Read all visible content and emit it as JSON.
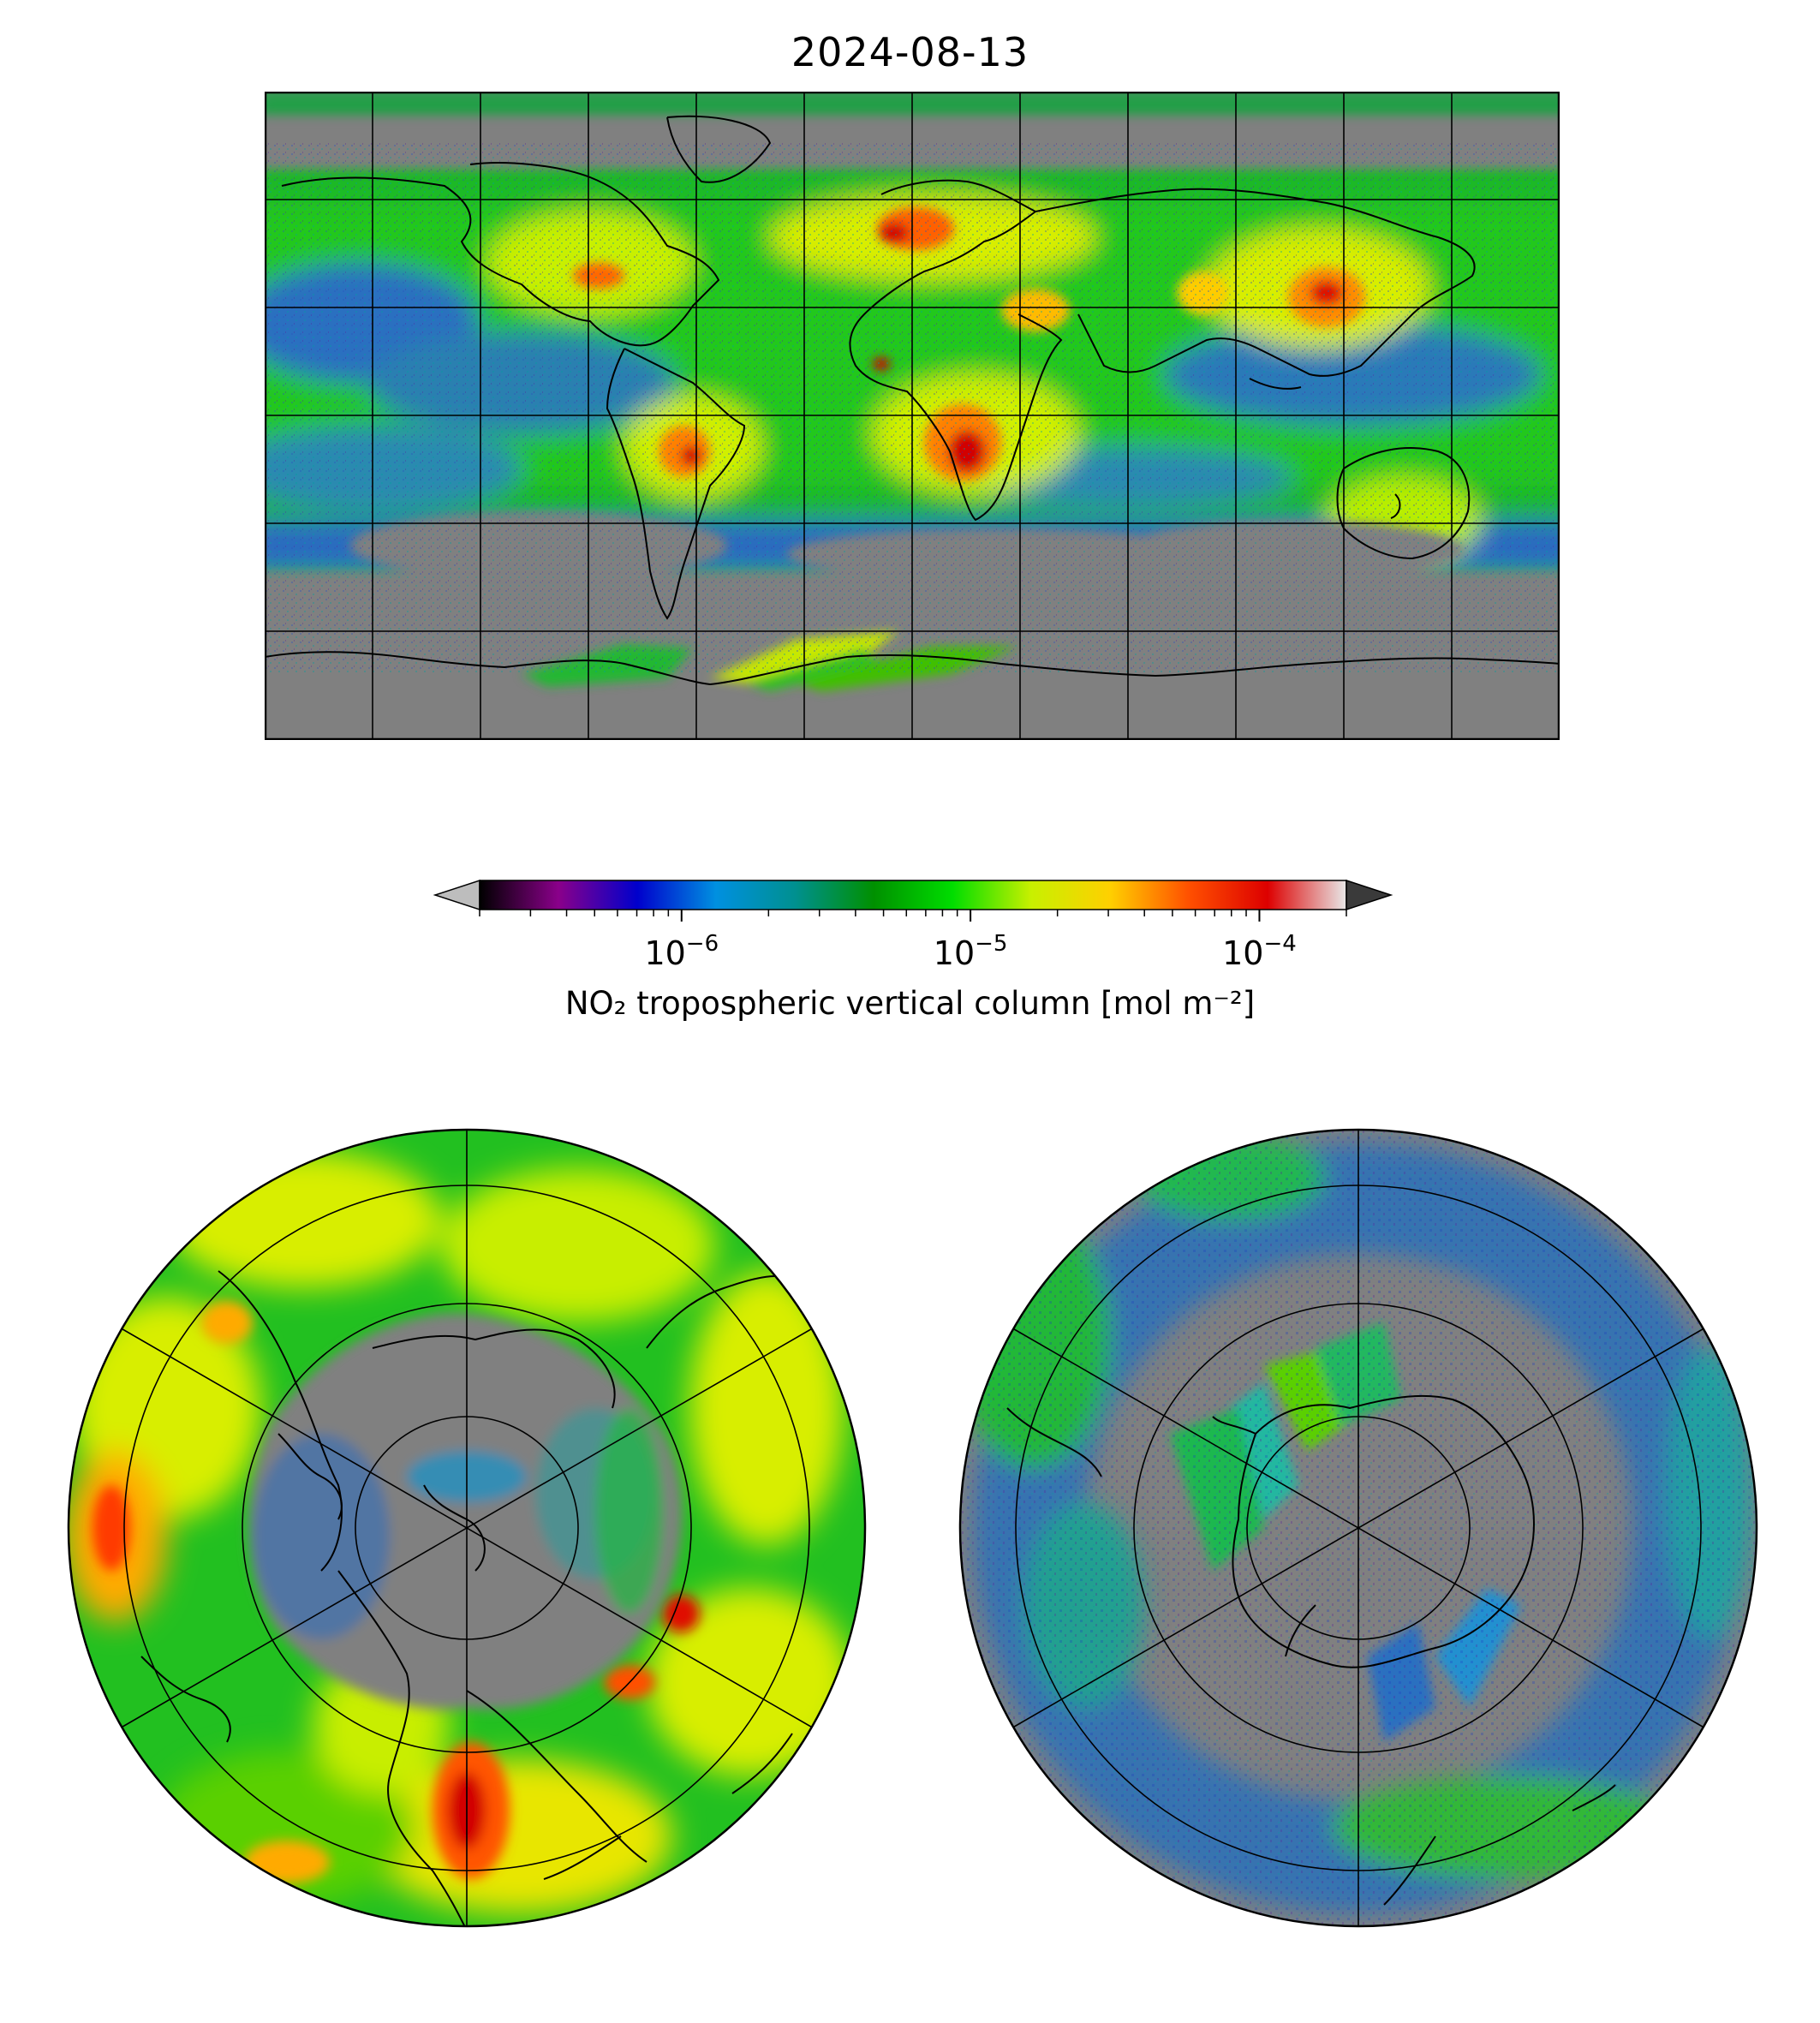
{
  "figure": {
    "title": "2024-08-13"
  },
  "colorbar": {
    "label": "NO₂ tropospheric vertical column [mol m⁻²]",
    "scale": "log",
    "range": [
      2e-07,
      0.0002
    ],
    "extend": "both",
    "major_ticks": [
      {
        "value": 1e-06,
        "base": "10",
        "exp": "−6"
      },
      {
        "value": 1e-05,
        "base": "10",
        "exp": "−5"
      },
      {
        "value": 0.0001,
        "base": "10",
        "exp": "−4"
      }
    ],
    "colors": [
      "#000000",
      "#8a008a",
      "#0000cc",
      "#0090e0",
      "#009090",
      "#009000",
      "#00dd00",
      "#c8f000",
      "#ffd000",
      "#ff5000",
      "#dd0000",
      "#e8e8e8"
    ],
    "under_color": "#bdbdbd",
    "over_color": "#3a3a3a"
  },
  "panels": [
    {
      "name": "global-map",
      "projection": "plate-carree",
      "gridlines": true
    },
    {
      "name": "north-polar-map",
      "projection": "north-polar-stereographic",
      "gridlines": true
    },
    {
      "name": "south-polar-map",
      "projection": "south-polar-stereographic",
      "gridlines": true
    }
  ],
  "colors": {
    "no_data": "#808080",
    "low": "#2a52be",
    "background": "#00c800",
    "moderate": "#dfee00",
    "high": "#ff8c00",
    "very_high": "#d20000"
  }
}
